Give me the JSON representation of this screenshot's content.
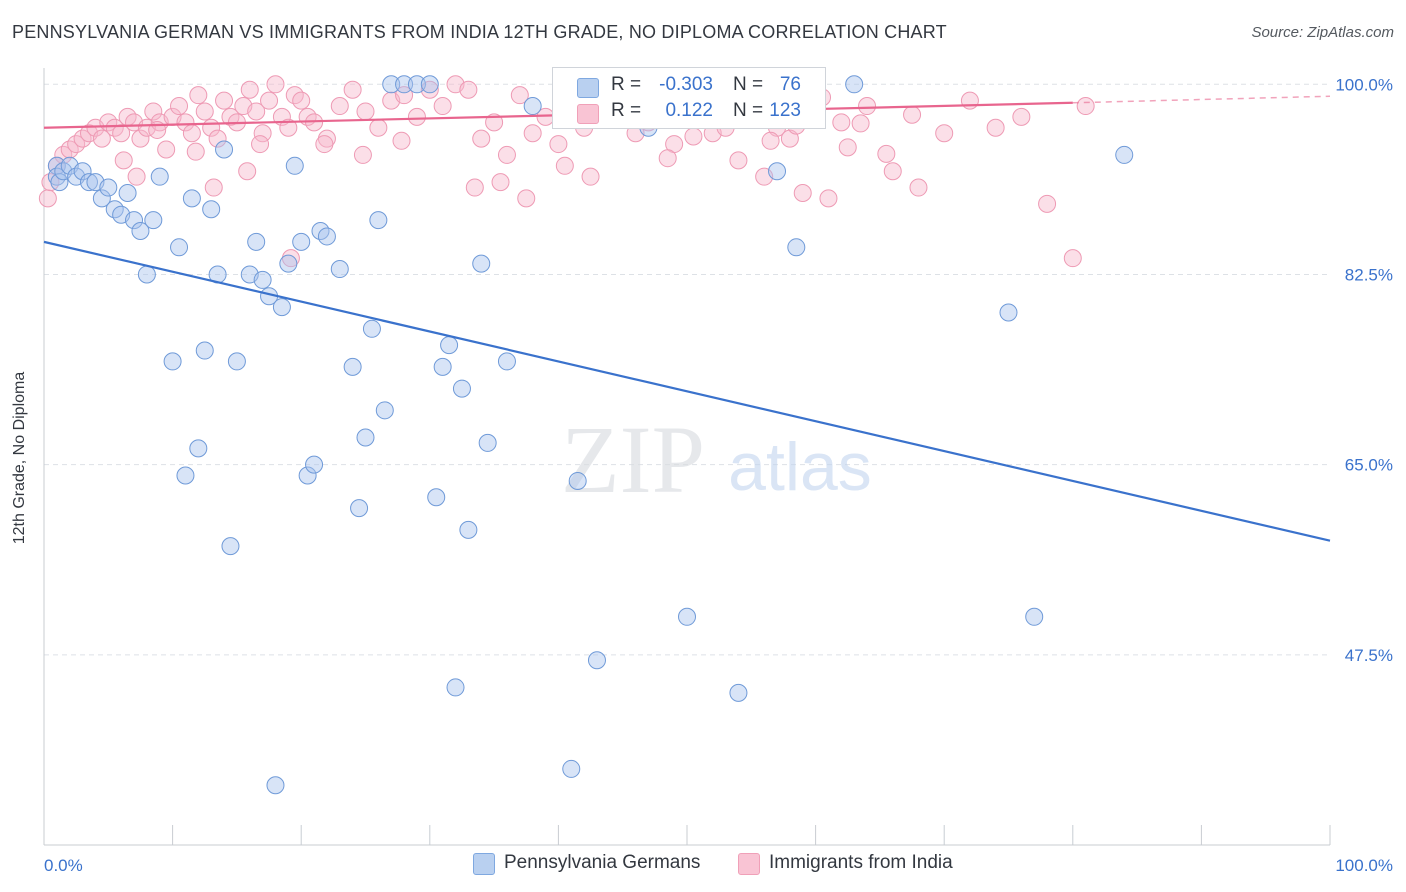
{
  "title": "PENNSYLVANIA GERMAN VS IMMIGRANTS FROM INDIA 12TH GRADE, NO DIPLOMA CORRELATION CHART",
  "source": "Source: ZipAtlas.com",
  "watermark": {
    "zip": "ZIP",
    "atlas": "atlas"
  },
  "legend": {
    "series": [
      {
        "r_label": "R =",
        "r_value": "-0.303",
        "n_label": "N =",
        "n_value": "76",
        "color": "#7fa8e0"
      },
      {
        "r_label": "R =",
        "r_value": "0.122",
        "n_label": "N =",
        "n_value": "123",
        "color": "#f0a0b8"
      }
    ]
  },
  "bottom_legend": [
    "Pennsylvania Germans",
    "Immigrants from India"
  ],
  "chart_data": {
    "type": "scatter",
    "title": "PENNSYLVANIA GERMAN VS IMMIGRANTS FROM INDIA 12TH GRADE, NO DIPLOMA CORRELATION CHART",
    "xlabel": "",
    "ylabel": "12th Grade, No Diploma",
    "xlim": [
      0,
      100
    ],
    "ylim": [
      30,
      101.5
    ],
    "x_tick_labels": [
      "0.0%",
      "100.0%"
    ],
    "y_ticks": [
      100,
      82.5,
      65,
      47.5
    ],
    "y_tick_labels": [
      "100.0%",
      "82.5%",
      "65.0%",
      "47.5%"
    ],
    "grid": true,
    "colors": {
      "blue": "#3a72cc",
      "blue_fill": "#a8c4ee",
      "pink": "#e8658e",
      "pink_fill": "#f6b9cc",
      "axis_text": "#3a72cc",
      "grid": "#dde1e6"
    },
    "series": [
      {
        "name": "Pennsylvania Germans",
        "color": "#3a72cc",
        "trend": {
          "x": [
            0,
            100
          ],
          "y": [
            85.5,
            58.0
          ]
        },
        "points": [
          [
            1,
            92.5
          ],
          [
            1,
            91.5
          ],
          [
            1.2,
            91.0
          ],
          [
            1.5,
            92.0
          ],
          [
            2,
            92.5
          ],
          [
            2.5,
            91.5
          ],
          [
            3,
            92.0
          ],
          [
            3.5,
            91.0
          ],
          [
            4,
            91.0
          ],
          [
            4.5,
            89.5
          ],
          [
            5,
            90.5
          ],
          [
            5.5,
            88.5
          ],
          [
            6,
            88.0
          ],
          [
            6.5,
            90.0
          ],
          [
            7,
            87.5
          ],
          [
            7.5,
            86.5
          ],
          [
            8,
            82.5
          ],
          [
            8.5,
            87.5
          ],
          [
            9,
            91.5
          ],
          [
            10,
            74.5
          ],
          [
            10.5,
            85.0
          ],
          [
            11,
            64.0
          ],
          [
            11.5,
            89.5
          ],
          [
            12,
            66.5
          ],
          [
            12.5,
            75.5
          ],
          [
            13,
            88.5
          ],
          [
            13.5,
            82.5
          ],
          [
            14,
            94.0
          ],
          [
            14.5,
            57.5
          ],
          [
            15,
            74.5
          ],
          [
            16,
            82.5
          ],
          [
            16.5,
            85.5
          ],
          [
            17,
            82.0
          ],
          [
            17.5,
            80.5
          ],
          [
            18,
            35.5
          ],
          [
            18.5,
            79.5
          ],
          [
            19,
            83.5
          ],
          [
            19.5,
            92.5
          ],
          [
            20,
            85.5
          ],
          [
            20.5,
            64.0
          ],
          [
            21,
            65.0
          ],
          [
            21.5,
            86.5
          ],
          [
            22,
            86.0
          ],
          [
            23,
            83.0
          ],
          [
            24,
            74.0
          ],
          [
            24.5,
            61.0
          ],
          [
            25,
            67.5
          ],
          [
            25.5,
            77.5
          ],
          [
            26,
            87.5
          ],
          [
            26.5,
            70.0
          ],
          [
            27,
            100.0
          ],
          [
            28,
            100.0
          ],
          [
            29,
            100.0
          ],
          [
            30,
            100.0
          ],
          [
            30.5,
            62.0
          ],
          [
            31,
            74.0
          ],
          [
            31.5,
            76.0
          ],
          [
            32,
            44.5
          ],
          [
            32.5,
            72.0
          ],
          [
            33,
            59.0
          ],
          [
            34,
            83.5
          ],
          [
            34.5,
            67.0
          ],
          [
            36,
            74.5
          ],
          [
            38,
            98.0
          ],
          [
            41,
            37.0
          ],
          [
            41.5,
            63.5
          ],
          [
            43,
            47.0
          ],
          [
            47,
            96.0
          ],
          [
            50,
            51.0
          ],
          [
            54,
            44.0
          ],
          [
            57,
            92.0
          ],
          [
            58.5,
            85.0
          ],
          [
            63,
            100.0
          ],
          [
            75,
            79.0
          ],
          [
            77,
            51.0
          ],
          [
            84,
            93.5
          ]
        ]
      },
      {
        "name": "Immigrants from India",
        "color": "#e8658e",
        "trend": {
          "x": [
            0,
            80
          ],
          "y": [
            96.0,
            98.3
          ],
          "dashed_to": {
            "x": [
              80,
              100
            ],
            "y": [
              98.3,
              98.9
            ]
          }
        },
        "points": [
          [
            0.3,
            89.5
          ],
          [
            0.5,
            91.0
          ],
          [
            1,
            92.5
          ],
          [
            1.5,
            93.5
          ],
          [
            2,
            94.0
          ],
          [
            2.5,
            94.5
          ],
          [
            3,
            95.0
          ],
          [
            3.5,
            95.5
          ],
          [
            4,
            96.0
          ],
          [
            4.5,
            95.0
          ],
          [
            5,
            96.5
          ],
          [
            5.5,
            96.0
          ],
          [
            6,
            95.5
          ],
          [
            6.5,
            97.0
          ],
          [
            7,
            96.5
          ],
          [
            7.5,
            95.0
          ],
          [
            8,
            96.0
          ],
          [
            8.5,
            97.5
          ],
          [
            9,
            96.5
          ],
          [
            9.5,
            94.0
          ],
          [
            10,
            97.0
          ],
          [
            10.5,
            98.0
          ],
          [
            11,
            96.5
          ],
          [
            11.5,
            95.5
          ],
          [
            12,
            99.0
          ],
          [
            12.5,
            97.5
          ],
          [
            13,
            96.0
          ],
          [
            13.5,
            95.0
          ],
          [
            14,
            98.5
          ],
          [
            14.5,
            97.0
          ],
          [
            15,
            96.5
          ],
          [
            15.5,
            98.0
          ],
          [
            16,
            99.5
          ],
          [
            16.5,
            97.5
          ],
          [
            17,
            95.5
          ],
          [
            17.5,
            98.5
          ],
          [
            18,
            100.0
          ],
          [
            18.5,
            97.0
          ],
          [
            19,
            96.0
          ],
          [
            19.5,
            99.0
          ],
          [
            20,
            98.5
          ],
          [
            20.5,
            97.0
          ],
          [
            21,
            96.5
          ],
          [
            22,
            95.0
          ],
          [
            23,
            98.0
          ],
          [
            24,
            99.5
          ],
          [
            25,
            97.5
          ],
          [
            26,
            96.0
          ],
          [
            27,
            98.5
          ],
          [
            28,
            99.0
          ],
          [
            29,
            97.0
          ],
          [
            30,
            99.5
          ],
          [
            31,
            98.0
          ],
          [
            32,
            100.0
          ],
          [
            33,
            99.5
          ],
          [
            34,
            95.0
          ],
          [
            35,
            96.5
          ],
          [
            36,
            93.5
          ],
          [
            37,
            99.0
          ],
          [
            38,
            95.5
          ],
          [
            39,
            97.0
          ],
          [
            40,
            94.5
          ],
          [
            41,
            97.5
          ],
          [
            42,
            96.0
          ],
          [
            43,
            99.5
          ],
          [
            44,
            98.5
          ],
          [
            45,
            97.0
          ],
          [
            46,
            95.5
          ],
          [
            47,
            96.5
          ],
          [
            48,
            98.0
          ],
          [
            49,
            94.5
          ],
          [
            50,
            97.0
          ],
          [
            51,
            99.0
          ],
          [
            52,
            95.5
          ],
          [
            53,
            96.0
          ],
          [
            54,
            93.0
          ],
          [
            55,
            97.5
          ],
          [
            56,
            91.5
          ],
          [
            57,
            96.0
          ],
          [
            58,
            95.0
          ],
          [
            59,
            90.0
          ],
          [
            60,
            97.0
          ],
          [
            61,
            89.5
          ],
          [
            62,
            96.5
          ],
          [
            64,
            98.0
          ],
          [
            66,
            92.0
          ],
          [
            68,
            90.5
          ],
          [
            70,
            95.5
          ],
          [
            72,
            98.5
          ],
          [
            74,
            96.0
          ],
          [
            76,
            97.0
          ],
          [
            78,
            89.0
          ],
          [
            80,
            84.0
          ],
          [
            81,
            98.0
          ],
          [
            6.2,
            93.0
          ],
          [
            7.2,
            91.5
          ],
          [
            8.8,
            95.8
          ],
          [
            11.8,
            93.8
          ],
          [
            13.2,
            90.5
          ],
          [
            15.8,
            92.0
          ],
          [
            16.8,
            94.5
          ],
          [
            19.2,
            84.0
          ],
          [
            21.8,
            94.5
          ],
          [
            24.8,
            93.5
          ],
          [
            27.8,
            94.8
          ],
          [
            33.5,
            90.5
          ],
          [
            35.5,
            91.0
          ],
          [
            37.5,
            89.5
          ],
          [
            40.5,
            92.5
          ],
          [
            42.5,
            91.5
          ],
          [
            44.5,
            99.8
          ],
          [
            46.5,
            97.8
          ],
          [
            48.5,
            93.2
          ],
          [
            50.5,
            95.2
          ],
          [
            52.5,
            98.2
          ],
          [
            54.5,
            96.8
          ],
          [
            56.5,
            94.8
          ],
          [
            58.5,
            96.2
          ],
          [
            60.5,
            98.8
          ],
          [
            62.5,
            94.2
          ],
          [
            63.5,
            96.4
          ],
          [
            65.5,
            93.6
          ],
          [
            67.5,
            97.2
          ]
        ]
      }
    ]
  }
}
